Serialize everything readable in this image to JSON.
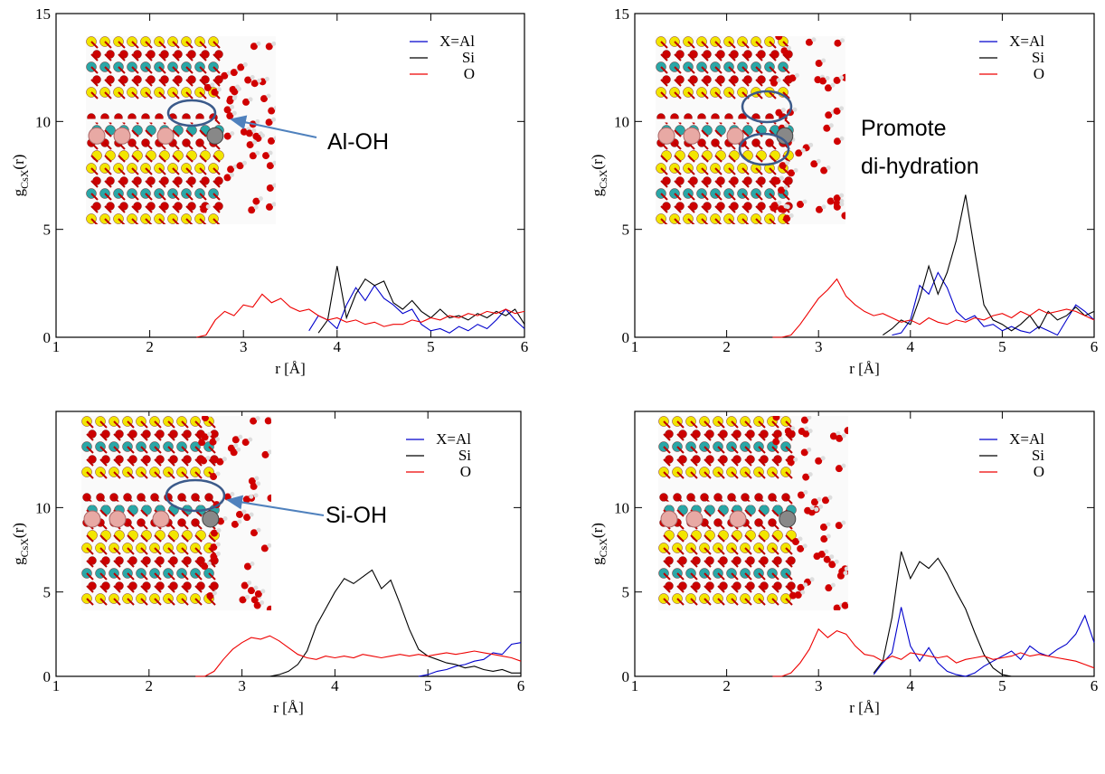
{
  "chart_data": [
    {
      "type": "line",
      "xlabel": "r [Å]",
      "ylabel": {
        "main": "g",
        "sub": "CsX",
        "tail": "(r)"
      },
      "xlim": [
        1,
        6
      ],
      "ylim": [
        0,
        15
      ],
      "xticks": [
        1,
        2,
        3,
        4,
        5,
        6
      ],
      "yticks": [
        0,
        5,
        10,
        15
      ],
      "legend": "upper right",
      "annotations": [
        "Al-OH"
      ],
      "x": [
        2.5,
        2.6,
        2.7,
        2.8,
        2.9,
        3.0,
        3.1,
        3.2,
        3.3,
        3.4,
        3.5,
        3.6,
        3.7,
        3.8,
        3.9,
        4.0,
        4.1,
        4.2,
        4.3,
        4.4,
        4.5,
        4.6,
        4.7,
        4.8,
        4.9,
        5.0,
        5.1,
        5.2,
        5.3,
        5.4,
        5.5,
        5.6,
        5.7,
        5.8,
        5.9,
        6.0
      ],
      "series": [
        {
          "name": "X=Al",
          "color": "#0000cc",
          "values": [
            null,
            null,
            null,
            null,
            null,
            null,
            null,
            null,
            null,
            null,
            null,
            null,
            0.3,
            1.0,
            0.8,
            0.4,
            1.5,
            2.3,
            1.7,
            2.4,
            1.8,
            1.5,
            1.1,
            1.3,
            0.6,
            0.3,
            0.4,
            0.2,
            0.5,
            0.3,
            0.6,
            0.4,
            0.8,
            1.3,
            0.8,
            0.4
          ]
        },
        {
          "name": "Si",
          "color": "#000000",
          "values": [
            null,
            null,
            null,
            null,
            null,
            null,
            null,
            null,
            null,
            null,
            null,
            null,
            null,
            0.2,
            0.8,
            3.3,
            0.9,
            2.0,
            2.7,
            2.4,
            2.6,
            1.6,
            1.3,
            1.7,
            1.2,
            0.9,
            1.3,
            0.9,
            1.0,
            0.8,
            1.1,
            0.9,
            1.2,
            1.0,
            1.3,
            0.6
          ]
        },
        {
          "name": "O",
          "color": "#ee0000",
          "values": [
            0,
            0.1,
            0.8,
            1.2,
            1.0,
            1.5,
            1.4,
            2.0,
            1.6,
            1.8,
            1.4,
            1.2,
            1.3,
            1.0,
            0.8,
            0.9,
            0.7,
            0.8,
            0.6,
            0.7,
            0.5,
            0.6,
            0.6,
            0.8,
            0.7,
            0.9,
            0.8,
            1.0,
            0.9,
            1.1,
            1.0,
            1.2,
            1.1,
            1.3,
            1.1,
            1.2
          ]
        }
      ]
    },
    {
      "type": "line",
      "xlabel": "r [Å]",
      "ylabel": {
        "main": "g",
        "sub": "CsX",
        "tail": "(r)"
      },
      "xlim": [
        1,
        6
      ],
      "ylim": [
        0,
        15
      ],
      "xticks": [
        1,
        2,
        3,
        4,
        5,
        6
      ],
      "yticks": [
        0,
        5,
        10,
        15
      ],
      "legend": "upper right",
      "annotations": [
        "Promote",
        "di-hydration"
      ],
      "x": [
        2.5,
        2.6,
        2.7,
        2.8,
        2.9,
        3.0,
        3.1,
        3.2,
        3.3,
        3.4,
        3.5,
        3.6,
        3.7,
        3.8,
        3.9,
        4.0,
        4.1,
        4.2,
        4.3,
        4.4,
        4.5,
        4.6,
        4.7,
        4.8,
        4.9,
        5.0,
        5.1,
        5.2,
        5.3,
        5.4,
        5.5,
        5.6,
        5.7,
        5.8,
        5.9,
        6.0
      ],
      "series": [
        {
          "name": "X=Al",
          "color": "#0000cc",
          "values": [
            null,
            null,
            null,
            null,
            null,
            null,
            null,
            null,
            null,
            null,
            null,
            null,
            null,
            0.1,
            0.2,
            0.8,
            2.4,
            2.0,
            3.0,
            2.3,
            1.2,
            0.8,
            1.0,
            0.5,
            0.6,
            0.3,
            0.5,
            0.3,
            0.2,
            0.5,
            0.3,
            0.1,
            0.8,
            1.5,
            1.2,
            0.8
          ]
        },
        {
          "name": "Si",
          "color": "#000000",
          "values": [
            null,
            null,
            null,
            null,
            null,
            null,
            null,
            null,
            null,
            null,
            null,
            null,
            0.1,
            0.4,
            0.8,
            0.6,
            1.8,
            3.3,
            2.0,
            3.0,
            4.5,
            6.6,
            4.0,
            1.5,
            0.8,
            0.6,
            0.3,
            0.6,
            1.0,
            0.4,
            1.2,
            0.8,
            1.0,
            1.4,
            1.0,
            1.2
          ]
        },
        {
          "name": "O",
          "color": "#ee0000",
          "values": [
            0,
            0,
            0.1,
            0.6,
            1.2,
            1.8,
            2.2,
            2.7,
            1.9,
            1.5,
            1.2,
            1.0,
            1.1,
            0.9,
            0.7,
            0.8,
            0.6,
            0.9,
            0.7,
            0.6,
            0.8,
            0.7,
            0.9,
            0.8,
            1.0,
            1.1,
            0.9,
            1.2,
            1.0,
            1.3,
            1.1,
            1.2,
            1.3,
            1.2,
            1.0,
            0.8
          ]
        }
      ]
    },
    {
      "type": "line",
      "xlabel": "r [Å]",
      "ylabel": {
        "main": "g",
        "sub": "CsX",
        "tail": "(r)"
      },
      "xlim": [
        1,
        6
      ],
      "ylim": [
        0,
        15.7
      ],
      "xticks": [
        1,
        2,
        3,
        4,
        5,
        6
      ],
      "yticks": [
        0,
        5,
        10
      ],
      "legend": "upper right",
      "annotations": [
        "Si-OH"
      ],
      "x": [
        2.5,
        2.6,
        2.7,
        2.8,
        2.9,
        3.0,
        3.1,
        3.2,
        3.3,
        3.4,
        3.5,
        3.6,
        3.7,
        3.8,
        3.9,
        4.0,
        4.1,
        4.2,
        4.3,
        4.4,
        4.5,
        4.6,
        4.7,
        4.8,
        4.9,
        5.0,
        5.1,
        5.2,
        5.3,
        5.4,
        5.5,
        5.6,
        5.7,
        5.8,
        5.9,
        6.0
      ],
      "series": [
        {
          "name": "X=Al",
          "color": "#0000cc",
          "values": [
            null,
            null,
            null,
            null,
            null,
            null,
            null,
            null,
            null,
            null,
            null,
            null,
            null,
            null,
            null,
            null,
            null,
            null,
            null,
            null,
            null,
            null,
            null,
            null,
            0,
            0.1,
            0.3,
            0.4,
            0.6,
            0.7,
            0.9,
            1.0,
            1.4,
            1.3,
            1.9,
            2.0
          ]
        },
        {
          "name": "Si",
          "color": "#000000",
          "values": [
            null,
            null,
            null,
            null,
            null,
            null,
            null,
            null,
            0,
            0.1,
            0.3,
            0.7,
            1.5,
            3.0,
            4.0,
            5.0,
            5.8,
            5.5,
            5.9,
            6.3,
            5.2,
            5.7,
            4.3,
            2.8,
            1.6,
            1.2,
            1.0,
            0.8,
            0.7,
            0.5,
            0.6,
            0.4,
            0.3,
            0.4,
            0.2,
            0.2
          ]
        },
        {
          "name": "O",
          "color": "#ee0000",
          "values": [
            0,
            0,
            0.3,
            1.0,
            1.6,
            2.0,
            2.3,
            2.2,
            2.4,
            2.1,
            1.7,
            1.3,
            1.1,
            1.0,
            1.2,
            1.1,
            1.2,
            1.1,
            1.3,
            1.2,
            1.1,
            1.2,
            1.3,
            1.2,
            1.3,
            1.2,
            1.3,
            1.4,
            1.3,
            1.4,
            1.5,
            1.4,
            1.3,
            1.2,
            1.1,
            0.9
          ]
        }
      ]
    },
    {
      "type": "line",
      "xlabel": "r [Å]",
      "ylabel": {
        "main": "g",
        "sub": "CsX",
        "tail": "(r)"
      },
      "xlim": [
        1,
        6
      ],
      "ylim": [
        0,
        15.7
      ],
      "xticks": [
        1,
        2,
        3,
        4,
        5,
        6
      ],
      "yticks": [
        0,
        5,
        10
      ],
      "legend": "upper right",
      "x": [
        2.5,
        2.6,
        2.7,
        2.8,
        2.9,
        3.0,
        3.1,
        3.2,
        3.3,
        3.4,
        3.5,
        3.6,
        3.7,
        3.8,
        3.9,
        4.0,
        4.1,
        4.2,
        4.3,
        4.4,
        4.5,
        4.6,
        4.7,
        4.8,
        4.9,
        5.0,
        5.1,
        5.2,
        5.3,
        5.4,
        5.5,
        5.6,
        5.7,
        5.8,
        5.9,
        6.0
      ],
      "series": [
        {
          "name": "X=Al",
          "color": "#0000cc",
          "values": [
            null,
            null,
            null,
            null,
            null,
            null,
            null,
            null,
            null,
            null,
            null,
            0.1,
            0.8,
            1.4,
            4.1,
            1.8,
            0.9,
            1.7,
            0.8,
            0.3,
            0.1,
            0.0,
            0.2,
            0.6,
            0.9,
            1.2,
            1.5,
            1.0,
            1.8,
            1.4,
            1.2,
            1.6,
            1.9,
            2.5,
            3.6,
            2.0
          ]
        },
        {
          "name": "Si",
          "color": "#000000",
          "values": [
            null,
            null,
            null,
            null,
            null,
            null,
            null,
            null,
            null,
            null,
            null,
            0.2,
            0.9,
            3.5,
            7.4,
            5.8,
            6.8,
            6.4,
            7.0,
            6.1,
            5.0,
            4.0,
            2.6,
            1.3,
            0.5,
            0.1,
            0.0,
            null,
            null,
            null,
            null,
            null,
            null,
            null,
            null,
            null
          ]
        },
        {
          "name": "O",
          "color": "#ee0000",
          "values": [
            0,
            0,
            0.2,
            0.8,
            1.6,
            2.8,
            2.3,
            2.7,
            2.5,
            1.8,
            1.3,
            1.2,
            0.9,
            1.2,
            1.0,
            1.4,
            1.3,
            1.2,
            1.1,
            1.2,
            0.8,
            1.0,
            1.1,
            1.2,
            1.0,
            1.1,
            1.2,
            1.4,
            1.2,
            1.3,
            1.2,
            1.1,
            1.0,
            0.9,
            0.7,
            0.5
          ]
        }
      ]
    }
  ]
}
